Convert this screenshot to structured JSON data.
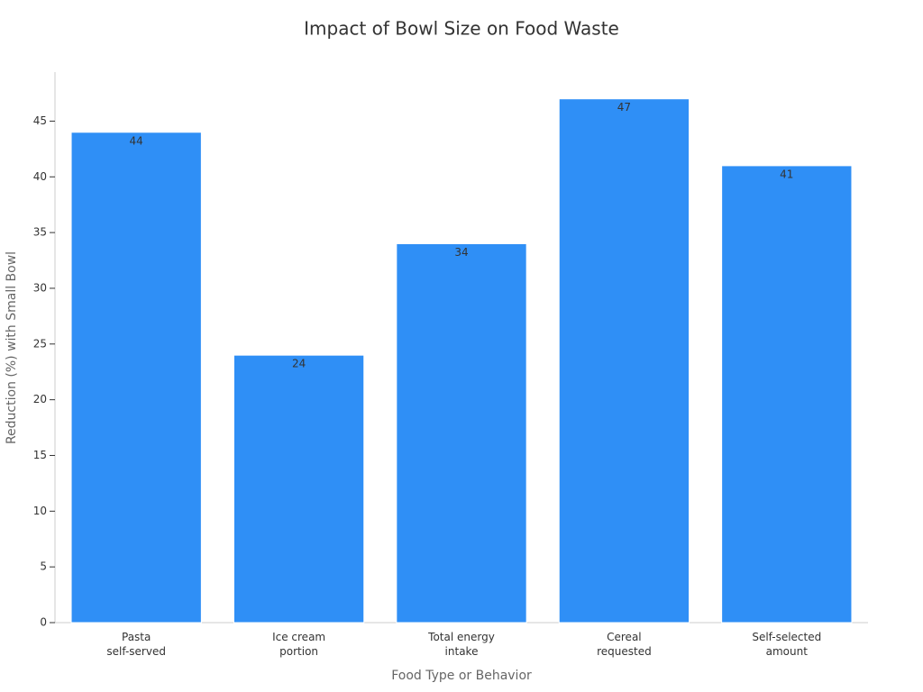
{
  "chart_data": {
    "type": "bar",
    "title": "Impact of Bowl Size on Food Waste",
    "x_label": "Food Type or Behavior",
    "y_label": "Reduction (%) with Small Bowl",
    "categories": [
      "Pasta\nself-served",
      "Ice cream\nportion",
      "Total energy\nintake",
      "Cereal\nrequested",
      "Self-selected\namount"
    ],
    "values": [
      44,
      24,
      34,
      47,
      41
    ],
    "color": "#2f8ff6",
    "ylim": [
      0,
      49.4
    ],
    "yticks": [
      0,
      5,
      10,
      15,
      20,
      25,
      30,
      35,
      40,
      45
    ],
    "grid": false
  }
}
